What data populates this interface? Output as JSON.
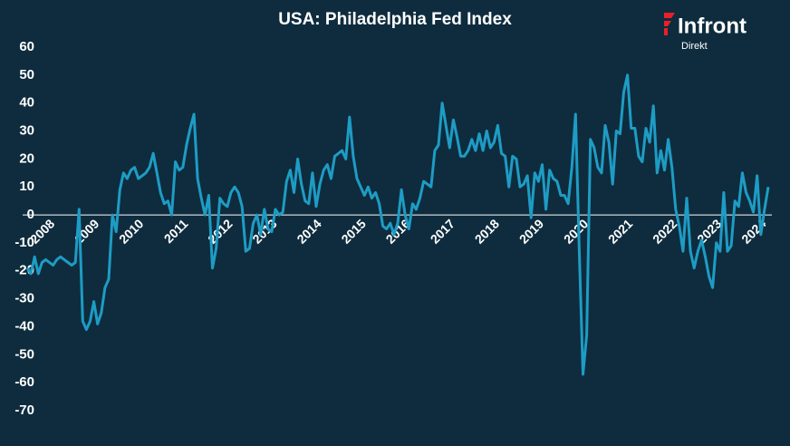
{
  "chart_data": {
    "type": "line",
    "title": "USA: Philadelphia Fed Index",
    "brand": {
      "name": "Infront",
      "sub": "Direkt"
    },
    "categories": [
      null,
      null,
      null,
      null,
      null,
      null,
      "2008",
      null,
      null,
      null,
      null,
      null,
      null,
      null,
      null,
      null,
      null,
      null,
      "2009",
      null,
      null,
      null,
      null,
      null,
      null,
      null,
      null,
      null,
      null,
      null,
      "2010",
      null,
      null,
      null,
      null,
      null,
      null,
      null,
      null,
      null,
      null,
      null,
      "2011",
      null,
      null,
      null,
      null,
      null,
      null,
      null,
      null,
      null,
      null,
      null,
      "2012",
      null,
      null,
      null,
      null,
      null,
      null,
      null,
      null,
      null,
      null,
      null,
      "2013",
      null,
      null,
      null,
      null,
      null,
      null,
      null,
      null,
      null,
      null,
      null,
      "2014",
      null,
      null,
      null,
      null,
      null,
      null,
      null,
      null,
      null,
      null,
      null,
      "2015",
      null,
      null,
      null,
      null,
      null,
      null,
      null,
      null,
      null,
      null,
      null,
      "2016",
      null,
      null,
      null,
      null,
      null,
      null,
      null,
      null,
      null,
      null,
      null,
      "2017",
      null,
      null,
      null,
      null,
      null,
      null,
      null,
      null,
      null,
      null,
      null,
      "2018",
      null,
      null,
      null,
      null,
      null,
      null,
      null,
      null,
      null,
      null,
      null,
      "2019",
      null,
      null,
      null,
      null,
      null,
      null,
      null,
      null,
      null,
      null,
      null,
      "2020",
      null,
      null,
      null,
      null,
      null,
      null,
      null,
      null,
      null,
      null,
      null,
      "2021",
      null,
      null,
      null,
      null,
      null,
      null,
      null,
      null,
      null,
      null,
      null,
      "2022",
      null,
      null,
      null,
      null,
      null,
      null,
      null,
      null,
      null,
      null,
      null,
      "2023",
      null,
      null,
      null,
      null,
      null,
      null,
      null,
      null,
      null,
      null,
      null,
      "2024",
      null,
      null
    ],
    "values": [
      -19,
      -21,
      -15,
      -21,
      -17,
      -16,
      -17,
      -18,
      -16,
      -15,
      -16,
      -17,
      -18,
      -17,
      2,
      -38,
      -41,
      -38,
      -31,
      -39,
      -35,
      -26,
      -23,
      0,
      -6,
      9,
      15,
      13,
      16,
      17,
      13,
      14,
      15,
      17,
      22,
      15,
      8,
      4,
      5,
      0,
      19,
      16,
      17,
      25,
      31,
      36,
      13,
      6,
      0,
      7,
      -19,
      -12,
      6,
      4,
      3,
      8,
      10,
      8,
      3,
      -13,
      -12,
      -3,
      0,
      -7,
      2,
      -5,
      -6,
      2,
      0,
      1,
      12,
      16,
      8,
      20,
      11,
      5,
      4,
      15,
      3,
      11,
      16,
      18,
      13,
      21,
      22,
      23,
      20,
      35,
      21,
      13,
      10,
      7,
      10,
      6,
      8,
      4,
      -4,
      -5,
      -3,
      -7,
      -3,
      9,
      0,
      -5,
      4,
      2,
      6,
      12,
      11,
      10,
      23,
      25,
      40,
      32,
      24,
      34,
      28,
      21,
      21,
      23,
      27,
      23,
      29,
      23,
      30,
      24,
      26,
      32,
      22,
      21,
      10,
      21,
      20,
      10,
      11,
      14,
      -1,
      15,
      12,
      18,
      2,
      16,
      13,
      12,
      7,
      7,
      4,
      17,
      36,
      -13,
      -57,
      -43,
      27,
      24,
      17,
      15,
      32,
      26,
      11,
      30,
      29,
      44,
      50,
      31,
      31,
      21,
      19,
      31,
      26,
      39,
      15,
      23,
      16,
      27,
      17,
      2,
      -4,
      -13,
      6,
      -13,
      -19,
      -13,
      -9,
      -15,
      -22,
      -26,
      -10,
      -13,
      8,
      -13,
      -11,
      5,
      3,
      15,
      8,
      5,
      1,
      14,
      -7,
      2,
      10
    ],
    "color": "#1e9cc4",
    "ylim": [
      -70,
      60
    ],
    "yticks": [
      60,
      50,
      40,
      30,
      20,
      10,
      0,
      -10,
      -20,
      -30,
      -40,
      -50,
      -60,
      -70
    ]
  }
}
